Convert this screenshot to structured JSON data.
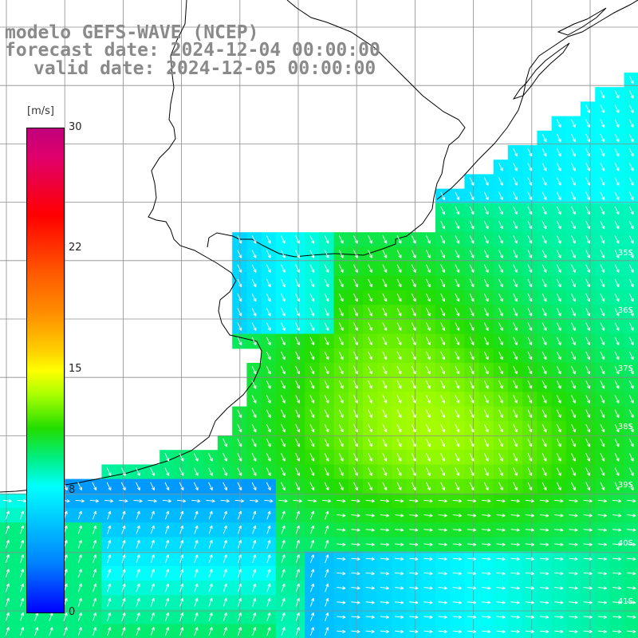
{
  "title": {
    "line1": "modelo GEFS-WAVE (NCEP)",
    "line2": "forecast date: 2024-12-04 00:00:00",
    "line3": "valid date: 2024-12-05 00:00:00"
  },
  "colorbar": {
    "unit": "[m/s]",
    "ticks": [
      {
        "label": "30",
        "value": 30
      },
      {
        "label": "22",
        "value": 22
      },
      {
        "label": "15",
        "value": 15
      },
      {
        "label": "8",
        "value": 8
      },
      {
        "label": "0",
        "value": 0
      }
    ]
  },
  "lat_labels": [
    "35S",
    "36S",
    "37S",
    "38S",
    "39S",
    "40S",
    "41S"
  ],
  "colors": {
    "land": "#ffffff",
    "coast": "#000000",
    "grid": "#888888",
    "arrow": "#ffffff"
  }
}
